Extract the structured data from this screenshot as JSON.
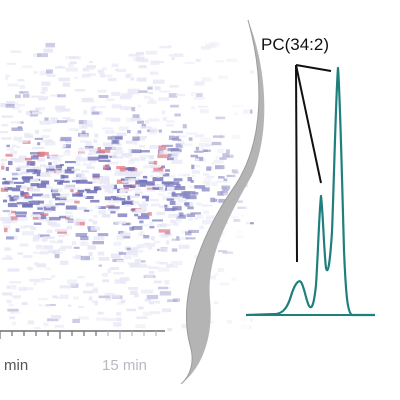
{
  "heatmap": {
    "x_tick_labels": [
      "min",
      "15 min"
    ],
    "colors": {
      "low": "#e8e8f6",
      "mid": "#6f6fb8",
      "high": "#e07a86",
      "axis": "#6f6f6f",
      "tick_text": "#555555",
      "tick_text_faded": "#b9b9c4"
    }
  },
  "divider": {
    "color": "#b4b4b4",
    "dark_edge": "#333333"
  },
  "chromatogram": {
    "peak_label": "PC(34:2)",
    "trace_color": "#1f7f7c",
    "baseline_color": "#1f7f7c",
    "annotation_color": "#111111"
  }
}
